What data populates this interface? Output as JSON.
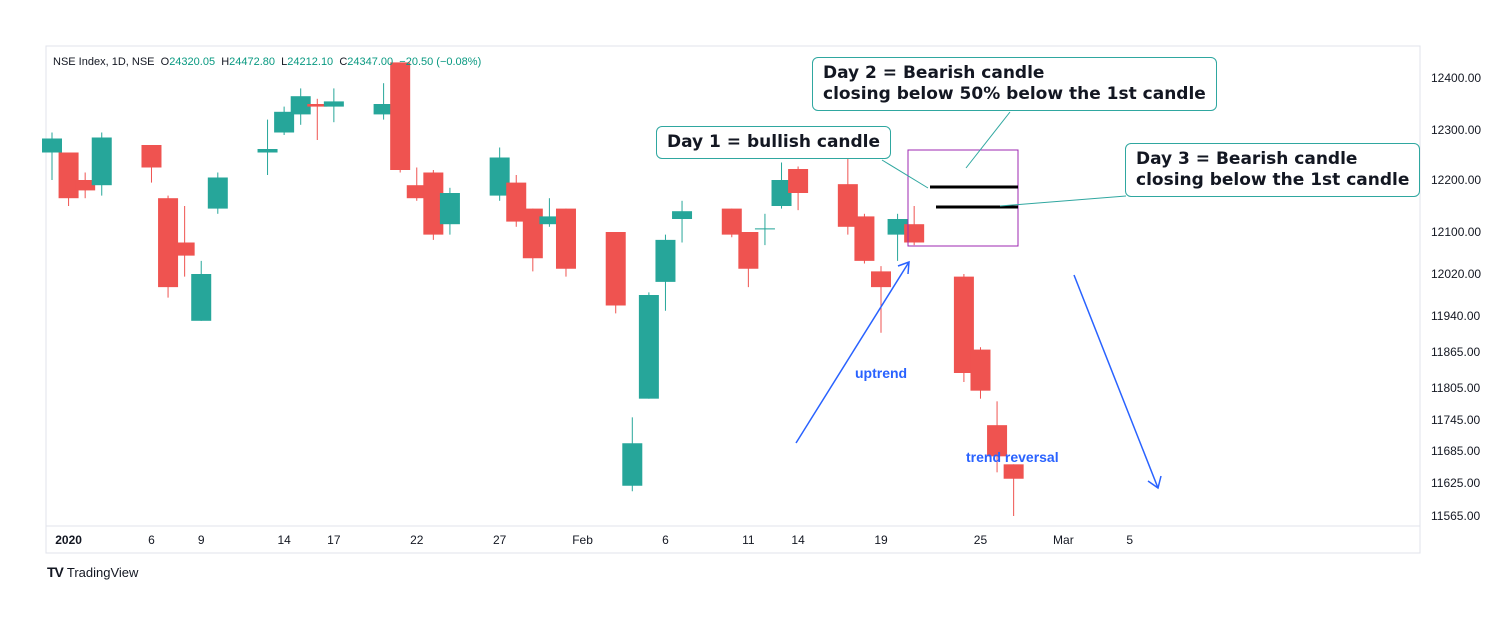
{
  "legend": {
    "symbol": "NSE Index, 1D, NSE",
    "open_label": "O",
    "open": "24320.05",
    "high_label": "H",
    "high": "24472.80",
    "low_label": "L",
    "low": "24212.10",
    "close_label": "C",
    "close": "24347.00",
    "change": "−20.50 (−0.08%)"
  },
  "callouts": {
    "day1": "Day 1 = bullish candle",
    "day2_line1": "Day 2 = Bearish candle",
    "day2_line2": "closing below 50% below the 1st candle",
    "day3_line1": "Day 3 = Bearish candle",
    "day3_line2": "closing below the 1st candle"
  },
  "annotations": {
    "uptrend": "uptrend",
    "reversal": "trend reversal"
  },
  "brand": {
    "name": "TradingView",
    "mark": "TV"
  },
  "colors": {
    "up": "#26a69a",
    "down": "#ef5350",
    "arrow": "#2962ff",
    "box": "#9c27b0",
    "callout_border": "#2fa7a0"
  },
  "chart_data": {
    "type": "candlestick",
    "y_ticks": [
      "12400.00",
      "12300.00",
      "12200.00",
      "12100.00",
      "12020.00",
      "11940.00",
      "11865.00",
      "11805.00",
      "11745.00",
      "11685.00",
      "11625.00",
      "11565.00"
    ],
    "y_tick_values": [
      12400,
      12300,
      12200,
      12100,
      12020,
      11940,
      11865,
      11805,
      11745,
      11685,
      11625,
      11565
    ],
    "x_ticks": [
      {
        "label": "2020",
        "day": 1,
        "bold": true
      },
      {
        "label": "6",
        "day": 6
      },
      {
        "label": "9",
        "day": 9
      },
      {
        "label": "14",
        "day": 14
      },
      {
        "label": "17",
        "day": 17
      },
      {
        "label": "22",
        "day": 22
      },
      {
        "label": "27",
        "day": 27
      },
      {
        "label": "Feb",
        "day": 32
      },
      {
        "label": "6",
        "day": 37
      },
      {
        "label": "11",
        "day": 42
      },
      {
        "label": "14",
        "day": 45
      },
      {
        "label": "19",
        "day": 50
      },
      {
        "label": "25",
        "day": 56
      },
      {
        "label": "Mar",
        "day": 61
      },
      {
        "label": "5",
        "day": 65
      }
    ],
    "candles": [
      {
        "day": 0,
        "o": 12255,
        "h": 12295,
        "l": 12200,
        "c": 12283
      },
      {
        "day": 1,
        "o": 12255,
        "h": 12255,
        "l": 12150,
        "c": 12165
      },
      {
        "day": 2,
        "o": 12200,
        "h": 12215,
        "l": 12165,
        "c": 12180
      },
      {
        "day": 3,
        "o": 12190,
        "h": 12295,
        "l": 12170,
        "c": 12285
      },
      {
        "day": 6,
        "o": 12270,
        "h": 12270,
        "l": 12195,
        "c": 12225
      },
      {
        "day": 7,
        "o": 12165,
        "h": 12170,
        "l": 11975,
        "c": 11995
      },
      {
        "day": 8,
        "o": 12080,
        "h": 12150,
        "l": 12015,
        "c": 12055
      },
      {
        "day": 9,
        "o": 11930,
        "h": 12045,
        "l": 11930,
        "c": 12020
      },
      {
        "day": 10,
        "o": 12145,
        "h": 12215,
        "l": 12135,
        "c": 12205
      },
      {
        "day": 13,
        "o": 12255,
        "h": 12320,
        "l": 12210,
        "c": 12262
      },
      {
        "day": 14,
        "o": 12295,
        "h": 12345,
        "l": 12290,
        "c": 12335
      },
      {
        "day": 15,
        "o": 12330,
        "h": 12380,
        "l": 12310,
        "c": 12365
      },
      {
        "day": 16,
        "o": 12350,
        "h": 12360,
        "l": 12280,
        "c": 12345
      },
      {
        "day": 17,
        "o": 12345,
        "h": 12380,
        "l": 12315,
        "c": 12355
      },
      {
        "day": 20,
        "o": 12330,
        "h": 12390,
        "l": 12320,
        "c": 12350
      },
      {
        "day": 21,
        "o": 12430,
        "h": 12430,
        "l": 12215,
        "c": 12220
      },
      {
        "day": 22,
        "o": 12190,
        "h": 12225,
        "l": 12160,
        "c": 12165
      },
      {
        "day": 23,
        "o": 12215,
        "h": 12220,
        "l": 12085,
        "c": 12095
      },
      {
        "day": 24,
        "o": 12115,
        "h": 12185,
        "l": 12095,
        "c": 12175
      },
      {
        "day": 27,
        "o": 12170,
        "h": 12265,
        "l": 12160,
        "c": 12245
      },
      {
        "day": 28,
        "o": 12195,
        "h": 12210,
        "l": 12110,
        "c": 12120
      },
      {
        "day": 29,
        "o": 12145,
        "h": 12145,
        "l": 12025,
        "c": 12050
      },
      {
        "day": 30,
        "o": 12115,
        "h": 12165,
        "l": 12110,
        "c": 12130
      },
      {
        "day": 31,
        "o": 12145,
        "h": 12145,
        "l": 12015,
        "c": 12030
      },
      {
        "day": 34,
        "o": 12100,
        "h": 12100,
        "l": 11945,
        "c": 11960
      },
      {
        "day": 35,
        "o": 11620,
        "h": 11750,
        "l": 11610,
        "c": 11700
      },
      {
        "day": 36,
        "o": 11785,
        "h": 11985,
        "l": 11785,
        "c": 11980
      },
      {
        "day": 37,
        "o": 12005,
        "h": 12095,
        "l": 11950,
        "c": 12085
      },
      {
        "day": 38,
        "o": 12125,
        "h": 12160,
        "l": 12080,
        "c": 12140
      },
      {
        "day": 41,
        "o": 12145,
        "h": 12145,
        "l": 12090,
        "c": 12095
      },
      {
        "day": 42,
        "o": 12100,
        "h": 12100,
        "l": 11995,
        "c": 12030
      },
      {
        "day": 43,
        "o": 12105,
        "h": 12135,
        "l": 12075,
        "c": 12107
      },
      {
        "day": 44,
        "o": 12150,
        "h": 12235,
        "l": 12145,
        "c": 12200
      },
      {
        "day": 45,
        "o": 12222,
        "h": 12227,
        "l": 12142,
        "c": 12175
      },
      {
        "day": 48,
        "o": 12192,
        "h": 12242,
        "l": 12095,
        "c": 12110
      },
      {
        "day": 49,
        "o": 12130,
        "h": 12135,
        "l": 12040,
        "c": 12045
      },
      {
        "day": 50,
        "o": 12025,
        "h": 12035,
        "l": 11905,
        "c": 11995
      },
      {
        "day": 51,
        "o": 12095,
        "h": 12135,
        "l": 12045,
        "c": 12125
      },
      {
        "day": 52,
        "o": 12115,
        "h": 12150,
        "l": 12075,
        "c": 12080
      },
      {
        "day": 55,
        "o": 12015,
        "h": 12020,
        "l": 11815,
        "c": 11830
      },
      {
        "day": 56,
        "o": 11870,
        "h": 11875,
        "l": 11785,
        "c": 11800
      },
      {
        "day": 57,
        "o": 11735,
        "h": 11780,
        "l": 11645,
        "c": 11675
      },
      {
        "day": 58,
        "o": 11660,
        "h": 11660,
        "l": 11565,
        "c": 11633
      }
    ]
  }
}
